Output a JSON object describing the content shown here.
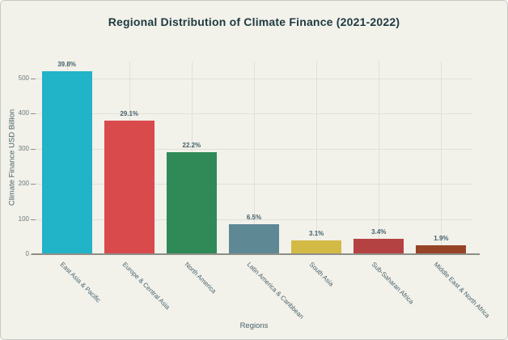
{
  "chart_data": {
    "type": "bar",
    "title": "Regional Distribution of Climate Finance (2021-2022)",
    "xlabel": "Regions",
    "ylabel": "Climate Finance USD Billion",
    "categories": [
      "East Asia & Pacific",
      "Europe & Central Asia",
      "North America",
      "Latin America & Caribbean",
      "South Asia",
      "Sub-Saharan Africa",
      "Middle East & North Africa"
    ],
    "values": [
      520,
      380,
      290,
      85,
      40,
      44,
      25
    ],
    "bar_labels": [
      "39.8%",
      "29.1%",
      "22.2%",
      "6.5%",
      "3.1%",
      "3.4%",
      "1.9%"
    ],
    "bar_colors": [
      "#21b3c7",
      "#d94a4d",
      "#2f8a57",
      "#5d8894",
      "#d3ba45",
      "#b54242",
      "#964326"
    ],
    "yticks": [
      0,
      100,
      200,
      300,
      400,
      500
    ],
    "ylim": [
      0,
      550
    ],
    "grid": true,
    "legend": "none"
  },
  "colors": {
    "background": "#f2f1ea",
    "title": "#1e3a40",
    "axis_title": "#47616b",
    "tick_label": "#6b7a7d",
    "bar_value_label": "#44616b",
    "gridline": "#e2e1d8",
    "axis_line": "#8e8e88"
  }
}
